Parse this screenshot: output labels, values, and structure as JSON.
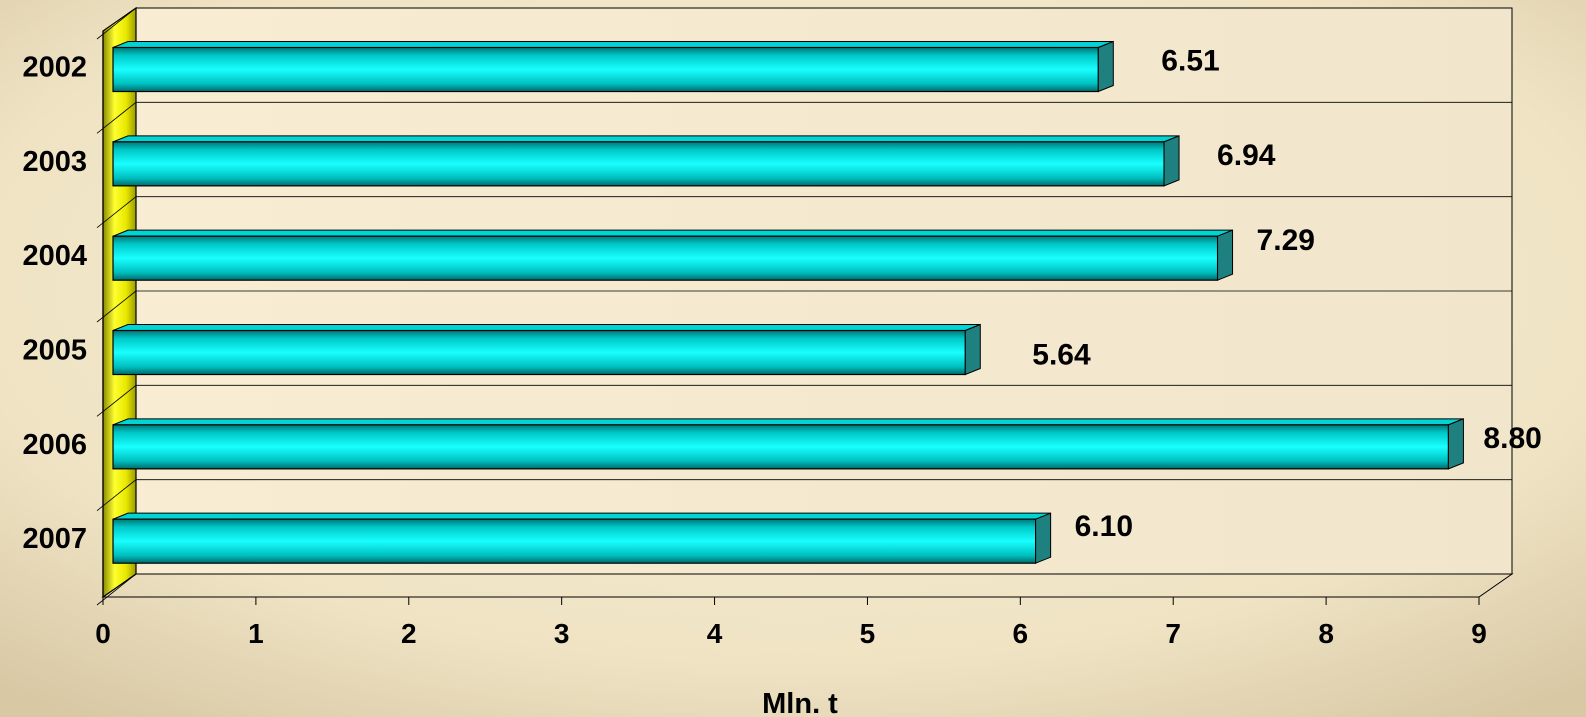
{
  "chart_data": {
    "type": "bar",
    "orientation": "horizontal",
    "categories": [
      "2002",
      "2003",
      "2004",
      "2005",
      "2006",
      "2007"
    ],
    "values": [
      6.51,
      6.94,
      7.29,
      5.64,
      8.8,
      6.1
    ],
    "value_labels": [
      "6.51",
      "6.94",
      "7.29",
      "5.64",
      "8.80",
      "6.10"
    ],
    "x_ticks": [
      "0",
      "1",
      "2",
      "3",
      "4",
      "5",
      "6",
      "7",
      "8",
      "9"
    ],
    "xlim": [
      0,
      9
    ],
    "xlabel": "Mln. t",
    "ylabel": "",
    "title": "",
    "grid": true,
    "legend": "none",
    "colors": {
      "bar": "#00e5e5",
      "bar_dark": "#008a8a",
      "bar_end": "#1f8080",
      "wall_bar": "#e8e800",
      "background": "#f4e8cc"
    }
  }
}
